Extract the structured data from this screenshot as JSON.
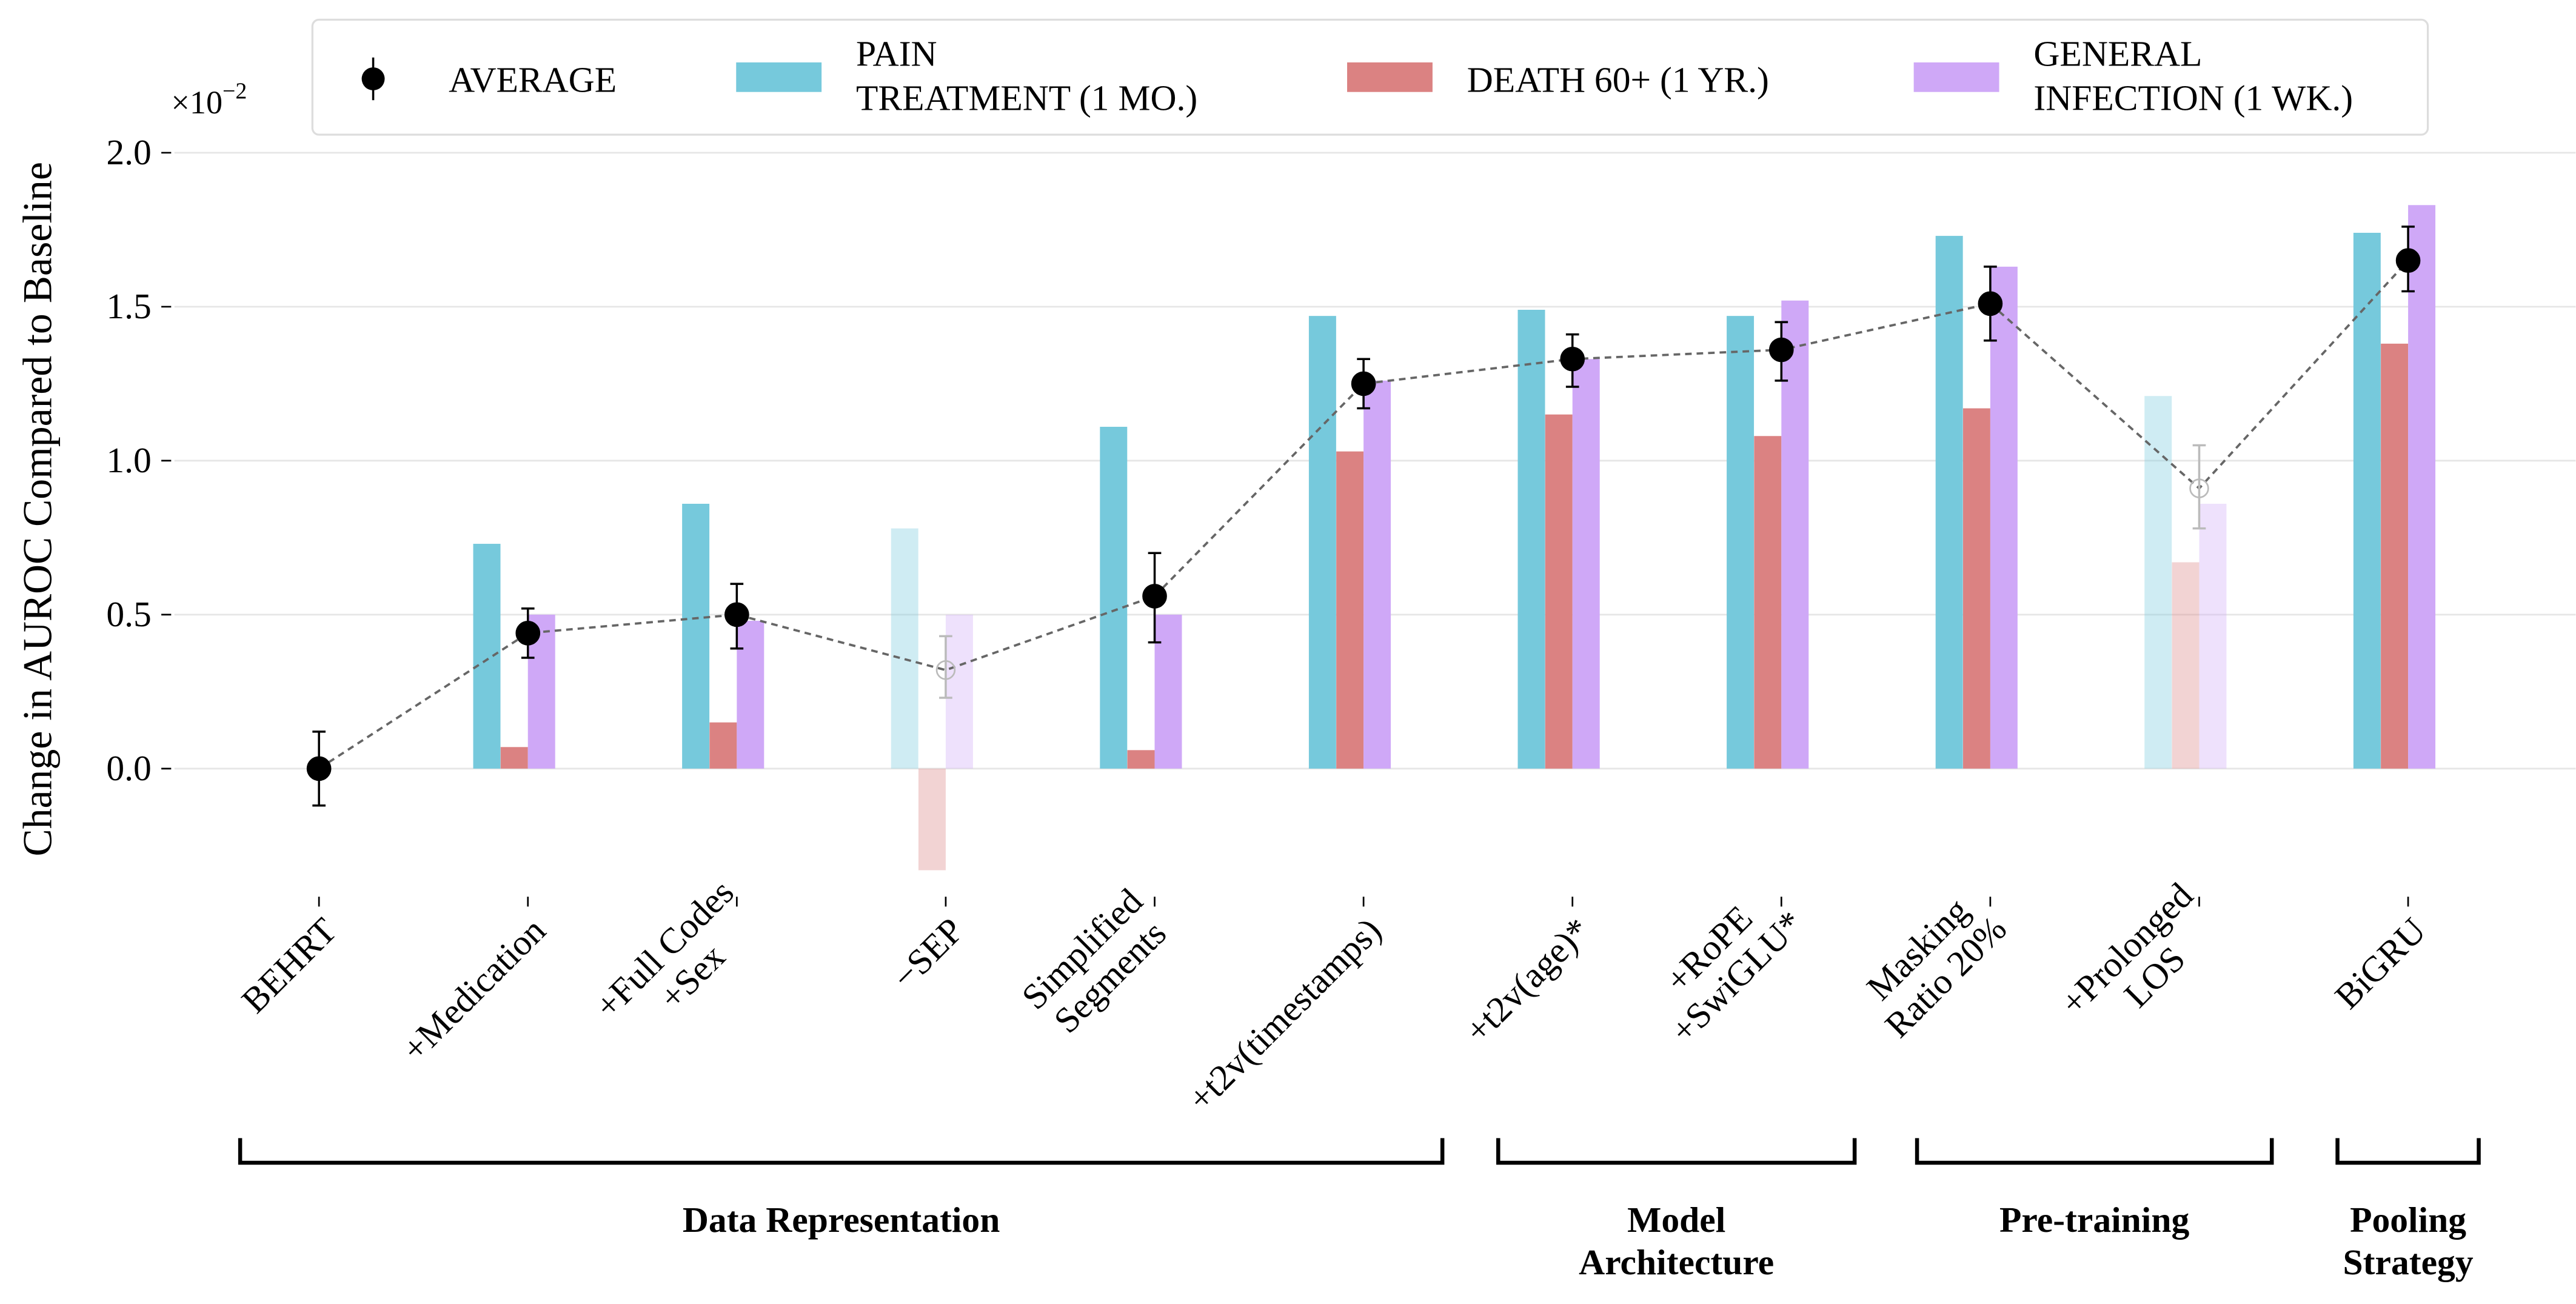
{
  "chart_data": {
    "type": "bar",
    "ylabel": "Change in AUROC Compared to Baseline",
    "y_multiplier": "×10⁻²",
    "y_multiplier_base": "×10",
    "y_multiplier_exp": "−2",
    "ylim": [
      -0.45,
      2.0
    ],
    "yticks": [
      "0.0",
      "0.5",
      "1.0",
      "1.5",
      "2.0"
    ],
    "grid": true,
    "legend_placement": "top",
    "categories": [
      {
        "label": [
          "BEHRT"
        ],
        "faded": false
      },
      {
        "label": [
          "+Medication"
        ],
        "faded": false
      },
      {
        "label": [
          "+Full Codes",
          "+Sex"
        ],
        "faded": false
      },
      {
        "label": [
          "−SEP"
        ],
        "faded": true
      },
      {
        "label": [
          "Simplified",
          "Segments"
        ],
        "faded": false
      },
      {
        "label": [
          "+t2v(timestamps)"
        ],
        "faded": false
      },
      {
        "label": [
          "+t2v(age)*"
        ],
        "faded": false
      },
      {
        "label": [
          "+RoPE",
          "+SwiGLU*"
        ],
        "faded": false
      },
      {
        "label": [
          "Masking",
          "Ratio 20%"
        ],
        "faded": false
      },
      {
        "label": [
          "+Prolonged",
          "LOS"
        ],
        "faded": true
      },
      {
        "label": [
          "BiGRU"
        ],
        "faded": false
      }
    ],
    "series": [
      {
        "name": [
          "PAIN",
          "TREATMENT (1 MO.)"
        ],
        "color": "#76c9dc",
        "values": [
          null,
          0.73,
          0.86,
          0.78,
          1.11,
          1.47,
          1.49,
          1.47,
          1.73,
          1.21,
          1.74
        ]
      },
      {
        "name": [
          "DEATH 60+ (1 YR.)"
        ],
        "color": "#db8282",
        "values": [
          null,
          0.07,
          0.15,
          -0.33,
          0.06,
          1.03,
          1.15,
          1.08,
          1.17,
          0.67,
          1.38
        ]
      },
      {
        "name": [
          "GENERAL",
          "INFECTION (1 WK.)"
        ],
        "color": "#cfa8f7",
        "values": [
          null,
          0.5,
          0.48,
          0.5,
          0.5,
          1.26,
          1.33,
          1.52,
          1.63,
          0.86,
          1.83
        ]
      }
    ],
    "average": {
      "name": "AVERAGE",
      "values": [
        0.0,
        0.44,
        0.5,
        0.32,
        0.56,
        1.25,
        1.33,
        1.36,
        1.51,
        0.91,
        1.65
      ],
      "err_low": [
        -0.12,
        0.36,
        0.39,
        0.23,
        0.41,
        1.17,
        1.24,
        1.26,
        1.39,
        0.78,
        1.55
      ],
      "err_high": [
        0.12,
        0.52,
        0.6,
        0.43,
        0.7,
        1.33,
        1.41,
        1.45,
        1.63,
        1.05,
        1.76
      ]
    },
    "groups": [
      {
        "label": [
          "Data Representation"
        ],
        "from": 0,
        "to": 5
      },
      {
        "label": [
          "Model",
          "Architecture"
        ],
        "from": 6,
        "to": 7
      },
      {
        "label": [
          "Pre-training"
        ],
        "from": 8,
        "to": 9
      },
      {
        "label": [
          "Pooling",
          "Strategy"
        ],
        "from": 10,
        "to": 10
      }
    ]
  }
}
